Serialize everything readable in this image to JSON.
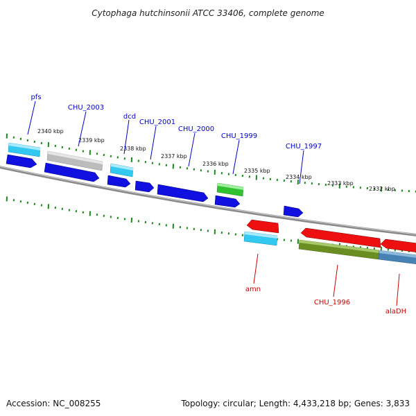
{
  "title": "Cytophaga hutchinsonii ATCC 33406, complete genome",
  "footer": {
    "accession": "Accession: NC_008255",
    "summary": "Topology: circular; Length: 4,433,218 bp; Genes: 3,833"
  },
  "colors": {
    "backbone": "#7a7a7a",
    "tick": "#1a8a1a",
    "label_forward": "#0000c8",
    "label_reverse": "#cc0000",
    "cds_forward": "#1010e0",
    "rna_forward": "#33c8f0",
    "pseudo": "#bbbbbb",
    "cds_green": "#30c030",
    "cds_reverse": "#ee1010",
    "rna_reverse": "#33c8f0",
    "olive": "#6b8e23",
    "steelblue": "#4682b4"
  },
  "scale_labels": [
    "2340 kbp",
    "2339 kbp",
    "2338 kbp",
    "2337 kbp",
    "2336 kbp",
    "2335 kbp",
    "2334 kbp",
    "2333 kbp",
    "2332 kbp"
  ],
  "forward_labels": [
    "pfs",
    "CHU_2003",
    "dcd",
    "CHU_2001",
    "CHU_2000",
    "CHU_1999",
    "CHU_1997"
  ],
  "reverse_labels": [
    "amn",
    "CHU_1996",
    "alaDH"
  ]
}
